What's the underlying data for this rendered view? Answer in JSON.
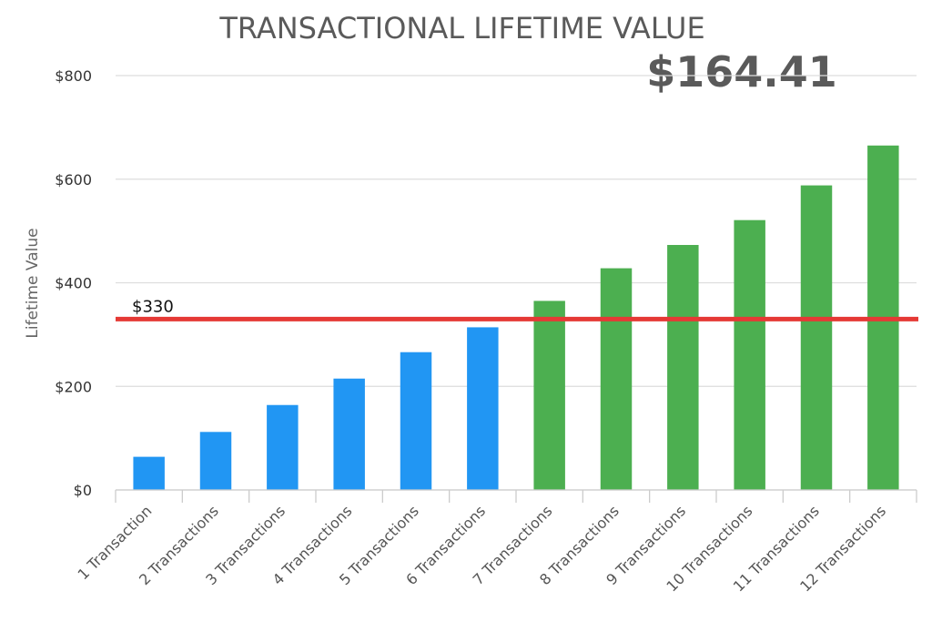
{
  "chart_data": {
    "type": "bar",
    "title": "TRANSACTIONAL LIFETIME VALUE",
    "headline_value": "$164.41",
    "xlabel": "",
    "ylabel": "Lifetime Value",
    "ylim": [
      0,
      800
    ],
    "yticks": [
      0,
      200,
      400,
      600,
      800
    ],
    "ytick_labels": [
      "$0",
      "$200",
      "$400",
      "$600",
      "$800"
    ],
    "grid": true,
    "categories": [
      "1 Transaction",
      "2 Transactions",
      "3 Transactions",
      "4 Transactions",
      "5 Transactions",
      "6 Transactions",
      "7 Transactions",
      "8 Transactions",
      "9 Transactions",
      "10 Transactions",
      "11 Transactions",
      "12 Transactions"
    ],
    "values": [
      64,
      112,
      164,
      215,
      266,
      314,
      365,
      428,
      473,
      521,
      588,
      665
    ],
    "reference_line": {
      "value": 330,
      "label": "$330",
      "color": "#e53935"
    },
    "colors": {
      "below": "#2196f3",
      "above": "#4caf50",
      "grid": "#dddddd",
      "axis": "#cccccc"
    }
  }
}
